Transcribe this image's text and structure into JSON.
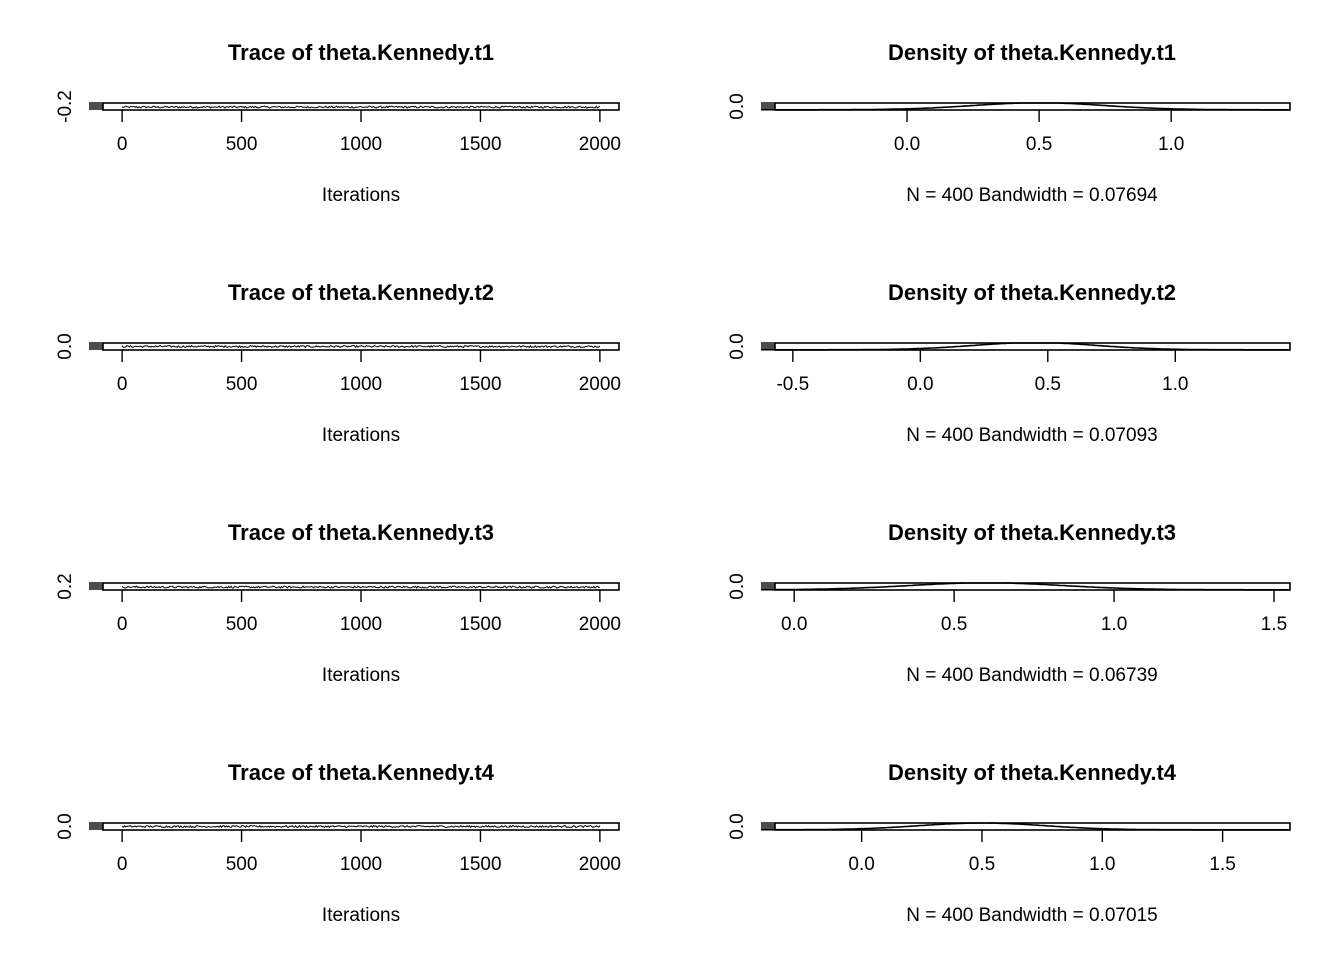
{
  "chart_data": [
    {
      "type": "line",
      "kind": "trace",
      "title": "Trace of theta.Kennedy.t1",
      "xlabel": "Iterations",
      "xticks": [
        0,
        500,
        1000,
        1500,
        2000
      ],
      "xlim": [
        -80,
        2080
      ],
      "yticks": [
        -0.2
      ],
      "ytick_labels": [
        "-0.2"
      ],
      "ylim": [
        -0.45,
        0.15
      ],
      "x_range": [
        0,
        2000
      ],
      "n_points": 400,
      "center": -0.2,
      "spread": 0.08
    },
    {
      "type": "line",
      "kind": "density",
      "title": "Density of theta.Kennedy.t1",
      "xlabel": "N = 400   Bandwidth = 0.07694",
      "xticks": [
        0.0,
        0.5,
        1.0
      ],
      "xtick_labels": [
        "0.0",
        "0.5",
        "1.0"
      ],
      "xlim": [
        -0.5,
        1.45
      ],
      "yticks": [
        0.0
      ],
      "ytick_labels": [
        "0.0"
      ],
      "ylim": [
        -0.05,
        1.5
      ],
      "mean": 0.5,
      "sd": 0.25,
      "peak": 1.55
    },
    {
      "type": "line",
      "kind": "trace",
      "title": "Trace of theta.Kennedy.t2",
      "xlabel": "Iterations",
      "xticks": [
        0,
        500,
        1000,
        1500,
        2000
      ],
      "xlim": [
        -80,
        2080
      ],
      "yticks": [
        0.0
      ],
      "ytick_labels": [
        "0.0"
      ],
      "ylim": [
        -0.3,
        0.3
      ],
      "x_range": [
        0,
        2000
      ],
      "n_points": 400,
      "center": 0.0,
      "spread": 0.08
    },
    {
      "type": "line",
      "kind": "density",
      "title": "Density of theta.Kennedy.t2",
      "xlabel": "N = 400   Bandwidth = 0.07093",
      "xticks": [
        -0.5,
        0.0,
        0.5,
        1.0
      ],
      "xtick_labels": [
        "-0.5",
        "0.0",
        "0.5",
        "1.0"
      ],
      "xlim": [
        -0.57,
        1.45
      ],
      "yticks": [
        0.0
      ],
      "ytick_labels": [
        "0.0"
      ],
      "ylim": [
        -0.05,
        1.5
      ],
      "mean": 0.45,
      "sd": 0.24,
      "peak": 1.6
    },
    {
      "type": "line",
      "kind": "trace",
      "title": "Trace of theta.Kennedy.t3",
      "xlabel": "Iterations",
      "xticks": [
        0,
        500,
        1000,
        1500,
        2000
      ],
      "xlim": [
        -80,
        2080
      ],
      "yticks": [
        0.2
      ],
      "ytick_labels": [
        "0.2"
      ],
      "ylim": [
        -0.05,
        0.55
      ],
      "x_range": [
        0,
        2000
      ],
      "n_points": 400,
      "center": 0.2,
      "spread": 0.08
    },
    {
      "type": "line",
      "kind": "density",
      "title": "Density of theta.Kennedy.t3",
      "xlabel": "N = 400   Bandwidth = 0.06739",
      "xticks": [
        0.0,
        0.5,
        1.0,
        1.5
      ],
      "xtick_labels": [
        "0.0",
        "0.5",
        "1.0",
        "1.5"
      ],
      "xlim": [
        -0.06,
        1.55
      ],
      "yticks": [
        0.0
      ],
      "ytick_labels": [
        "0.0"
      ],
      "ylim": [
        -0.05,
        1.5
      ],
      "mean": 0.6,
      "sd": 0.24,
      "peak": 1.55
    },
    {
      "type": "line",
      "kind": "trace",
      "title": "Trace of theta.Kennedy.t4",
      "xlabel": "Iterations",
      "xticks": [
        0,
        500,
        1000,
        1500,
        2000
      ],
      "xlim": [
        -80,
        2080
      ],
      "yticks": [
        0.0
      ],
      "ytick_labels": [
        "0.0"
      ],
      "ylim": [
        -0.3,
        0.3
      ],
      "x_range": [
        0,
        2000
      ],
      "n_points": 400,
      "center": 0.0,
      "spread": 0.08
    },
    {
      "type": "line",
      "kind": "density",
      "title": "Density of theta.Kennedy.t4",
      "xlabel": "N = 400   Bandwidth = 0.07015",
      "xticks": [
        0.0,
        0.5,
        1.0,
        1.5
      ],
      "xtick_labels": [
        "0.0",
        "0.5",
        "1.0",
        "1.5"
      ],
      "xlim": [
        -0.36,
        1.78
      ],
      "yticks": [
        0.0
      ],
      "ytick_labels": [
        "0.0"
      ],
      "ylim": [
        -0.05,
        1.5
      ],
      "mean": 0.5,
      "sd": 0.26,
      "peak": 1.5
    }
  ]
}
